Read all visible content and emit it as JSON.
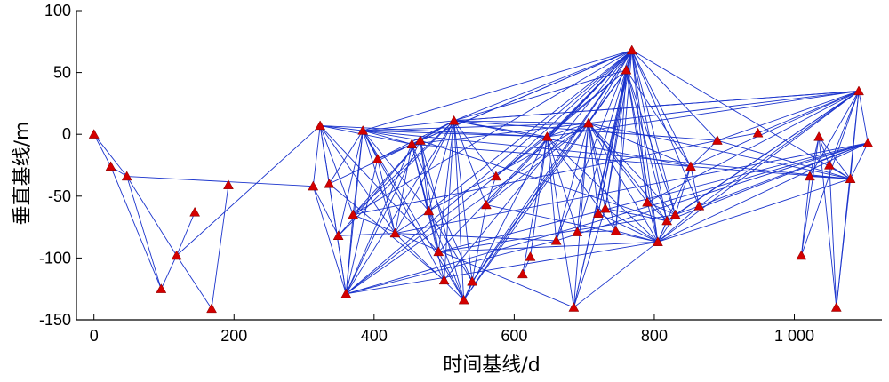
{
  "chart_data": {
    "type": "scatter",
    "title": "",
    "xlabel": "时间基线/d",
    "ylabel": "垂直基线/m",
    "xlim": [
      -25,
      1125
    ],
    "ylim": [
      -150,
      100
    ],
    "xticks": [
      0,
      200,
      400,
      600,
      800,
      1000
    ],
    "xtick_labels": [
      "0",
      "200",
      "400",
      "600",
      "800",
      "1 000"
    ],
    "yticks": [
      -150,
      -100,
      -50,
      0,
      50,
      100
    ],
    "ytick_labels": [
      "-150",
      "-100",
      "-50",
      "0",
      "50",
      "100"
    ],
    "grid": false,
    "legend": "none",
    "colors": {
      "edge": "#1a33cc",
      "point": "#d40000"
    },
    "points": [
      {
        "x": 0,
        "y": 0
      },
      {
        "x": 24,
        "y": -26
      },
      {
        "x": 47,
        "y": -34
      },
      {
        "x": 96,
        "y": -125
      },
      {
        "x": 118,
        "y": -98
      },
      {
        "x": 144,
        "y": -63
      },
      {
        "x": 168,
        "y": -141
      },
      {
        "x": 192,
        "y": -41
      },
      {
        "x": 313,
        "y": -42
      },
      {
        "x": 323,
        "y": 7
      },
      {
        "x": 336,
        "y": -40
      },
      {
        "x": 349,
        "y": -82
      },
      {
        "x": 360,
        "y": -129
      },
      {
        "x": 370,
        "y": -65
      },
      {
        "x": 384,
        "y": 3
      },
      {
        "x": 405,
        "y": -20
      },
      {
        "x": 430,
        "y": -80
      },
      {
        "x": 454,
        "y": -8
      },
      {
        "x": 466,
        "y": -5
      },
      {
        "x": 478,
        "y": -62
      },
      {
        "x": 492,
        "y": -95
      },
      {
        "x": 500,
        "y": -118
      },
      {
        "x": 514,
        "y": 11
      },
      {
        "x": 528,
        "y": -134
      },
      {
        "x": 540,
        "y": -119
      },
      {
        "x": 560,
        "y": -57
      },
      {
        "x": 574,
        "y": -34
      },
      {
        "x": 612,
        "y": -113
      },
      {
        "x": 623,
        "y": -99
      },
      {
        "x": 647,
        "y": -2
      },
      {
        "x": 660,
        "y": -86
      },
      {
        "x": 685,
        "y": -140
      },
      {
        "x": 690,
        "y": -79
      },
      {
        "x": 706,
        "y": 9
      },
      {
        "x": 720,
        "y": -64
      },
      {
        "x": 730,
        "y": -60
      },
      {
        "x": 745,
        "y": -78
      },
      {
        "x": 760,
        "y": 52
      },
      {
        "x": 768,
        "y": 68
      },
      {
        "x": 790,
        "y": -55
      },
      {
        "x": 805,
        "y": -87
      },
      {
        "x": 818,
        "y": -70
      },
      {
        "x": 830,
        "y": -65
      },
      {
        "x": 852,
        "y": -26
      },
      {
        "x": 864,
        "y": -58
      },
      {
        "x": 890,
        "y": -5
      },
      {
        "x": 948,
        "y": 1
      },
      {
        "x": 1010,
        "y": -98
      },
      {
        "x": 1022,
        "y": -34
      },
      {
        "x": 1035,
        "y": -2
      },
      {
        "x": 1050,
        "y": -25
      },
      {
        "x": 1060,
        "y": -140
      },
      {
        "x": 1080,
        "y": -36
      },
      {
        "x": 1092,
        "y": 35
      },
      {
        "x": 1105,
        "y": -7
      }
    ],
    "edges": [
      [
        0,
        1
      ],
      [
        0,
        2
      ],
      [
        1,
        3
      ],
      [
        1,
        2
      ],
      [
        2,
        3
      ],
      [
        2,
        4
      ],
      [
        3,
        4
      ],
      [
        4,
        5
      ],
      [
        4,
        6
      ],
      [
        6,
        7
      ],
      [
        2,
        8
      ],
      [
        4,
        9
      ],
      [
        9,
        10
      ],
      [
        9,
        12
      ],
      [
        9,
        14
      ],
      [
        9,
        16
      ],
      [
        9,
        17
      ],
      [
        9,
        20
      ],
      [
        9,
        13
      ],
      [
        9,
        29
      ],
      [
        8,
        12
      ],
      [
        8,
        9
      ],
      [
        8,
        11
      ],
      [
        10,
        12
      ],
      [
        10,
        14
      ],
      [
        10,
        18
      ],
      [
        10,
        21
      ],
      [
        11,
        14
      ],
      [
        11,
        18
      ],
      [
        11,
        22
      ],
      [
        11,
        16
      ],
      [
        12,
        13
      ],
      [
        12,
        14
      ],
      [
        12,
        15
      ],
      [
        12,
        17
      ],
      [
        12,
        18
      ],
      [
        12,
        22
      ],
      [
        12,
        26
      ],
      [
        12,
        33
      ],
      [
        12,
        38
      ],
      [
        12,
        30
      ],
      [
        12,
        40
      ],
      [
        13,
        14
      ],
      [
        13,
        18
      ],
      [
        13,
        22
      ],
      [
        13,
        38
      ],
      [
        13,
        31
      ],
      [
        13,
        45
      ],
      [
        14,
        15
      ],
      [
        14,
        16
      ],
      [
        14,
        17
      ],
      [
        14,
        18
      ],
      [
        14,
        19
      ],
      [
        14,
        21
      ],
      [
        14,
        22
      ],
      [
        14,
        29
      ],
      [
        14,
        33
      ],
      [
        14,
        38
      ],
      [
        14,
        23
      ],
      [
        14,
        52
      ],
      [
        15,
        16
      ],
      [
        15,
        22
      ],
      [
        15,
        17
      ],
      [
        16,
        17
      ],
      [
        16,
        19
      ],
      [
        16,
        22
      ],
      [
        16,
        23
      ],
      [
        16,
        30
      ],
      [
        17,
        18
      ],
      [
        17,
        19
      ],
      [
        17,
        20
      ],
      [
        17,
        21
      ],
      [
        17,
        22
      ],
      [
        17,
        24
      ],
      [
        17,
        38
      ],
      [
        17,
        43
      ],
      [
        17,
        33
      ],
      [
        18,
        19
      ],
      [
        18,
        20
      ],
      [
        18,
        23
      ],
      [
        18,
        22
      ],
      [
        18,
        38
      ],
      [
        18,
        41
      ],
      [
        19,
        22
      ],
      [
        19,
        23
      ],
      [
        19,
        24
      ],
      [
        19,
        38
      ],
      [
        19,
        33
      ],
      [
        20,
        22
      ],
      [
        20,
        23
      ],
      [
        20,
        38
      ],
      [
        20,
        40
      ],
      [
        20,
        42
      ],
      [
        21,
        22
      ],
      [
        21,
        38
      ],
      [
        22,
        23
      ],
      [
        22,
        24
      ],
      [
        22,
        25
      ],
      [
        22,
        26
      ],
      [
        22,
        29
      ],
      [
        22,
        33
      ],
      [
        22,
        38
      ],
      [
        22,
        37
      ],
      [
        22,
        43
      ],
      [
        22,
        45
      ],
      [
        22,
        53
      ],
      [
        23,
        24
      ],
      [
        23,
        38
      ],
      [
        23,
        33
      ],
      [
        23,
        29
      ],
      [
        24,
        25
      ],
      [
        24,
        38
      ],
      [
        24,
        37
      ],
      [
        25,
        26
      ],
      [
        25,
        33
      ],
      [
        25,
        38
      ],
      [
        26,
        29
      ],
      [
        26,
        38
      ],
      [
        27,
        28
      ],
      [
        29,
        30
      ],
      [
        29,
        31
      ],
      [
        29,
        32
      ],
      [
        29,
        33
      ],
      [
        29,
        37
      ],
      [
        29,
        38
      ],
      [
        29,
        40
      ],
      [
        29,
        53
      ],
      [
        30,
        33
      ],
      [
        30,
        38
      ],
      [
        31,
        33
      ],
      [
        31,
        35
      ],
      [
        31,
        37
      ],
      [
        31,
        38
      ],
      [
        32,
        33
      ],
      [
        32,
        38
      ],
      [
        32,
        36
      ],
      [
        33,
        34
      ],
      [
        33,
        35
      ],
      [
        33,
        36
      ],
      [
        33,
        37
      ],
      [
        33,
        38
      ],
      [
        33,
        39
      ],
      [
        33,
        40
      ],
      [
        33,
        41
      ],
      [
        33,
        42
      ],
      [
        33,
        43
      ],
      [
        33,
        53
      ],
      [
        34,
        37
      ],
      [
        34,
        38
      ],
      [
        34,
        40
      ],
      [
        35,
        37
      ],
      [
        35,
        38
      ],
      [
        35,
        41
      ],
      [
        36,
        37
      ],
      [
        36,
        38
      ],
      [
        36,
        40
      ],
      [
        37,
        38
      ],
      [
        37,
        39
      ],
      [
        37,
        40
      ],
      [
        37,
        41
      ],
      [
        37,
        42
      ],
      [
        37,
        43
      ],
      [
        38,
        39
      ],
      [
        38,
        40
      ],
      [
        38,
        41
      ],
      [
        38,
        42
      ],
      [
        38,
        43
      ],
      [
        38,
        44
      ],
      [
        38,
        45
      ],
      [
        39,
        40
      ],
      [
        39,
        41
      ],
      [
        39,
        42
      ],
      [
        39,
        53
      ],
      [
        40,
        41
      ],
      [
        40,
        42
      ],
      [
        40,
        43
      ],
      [
        40,
        44
      ],
      [
        40,
        53
      ],
      [
        40,
        54
      ],
      [
        41,
        42
      ],
      [
        41,
        53
      ],
      [
        42,
        43
      ],
      [
        42,
        44
      ],
      [
        42,
        53
      ],
      [
        43,
        44
      ],
      [
        43,
        45
      ],
      [
        43,
        53
      ],
      [
        44,
        53
      ],
      [
        44,
        54
      ],
      [
        45,
        46
      ],
      [
        45,
        53
      ],
      [
        45,
        52
      ],
      [
        46,
        53
      ],
      [
        22,
        53
      ],
      [
        33,
        52
      ],
      [
        43,
        52
      ],
      [
        38,
        52
      ],
      [
        40,
        52
      ],
      [
        41,
        54
      ],
      [
        47,
        48
      ],
      [
        47,
        49
      ],
      [
        48,
        49
      ],
      [
        48,
        52
      ],
      [
        49,
        50
      ],
      [
        49,
        52
      ],
      [
        50,
        52
      ],
      [
        50,
        53
      ],
      [
        50,
        51
      ],
      [
        51,
        52
      ],
      [
        51,
        53
      ],
      [
        51,
        49
      ],
      [
        52,
        53
      ],
      [
        52,
        54
      ],
      [
        53,
        54
      ],
      [
        47,
        53
      ],
      [
        48,
        53
      ],
      [
        12,
        54
      ],
      [
        16,
        54
      ],
      [
        20,
        54
      ],
      [
        30,
        54
      ],
      [
        28,
        29
      ],
      [
        27,
        29
      ],
      [
        25,
        40
      ],
      [
        26,
        37
      ],
      [
        31,
        40
      ],
      [
        35,
        40
      ],
      [
        29,
        36
      ]
    ]
  }
}
